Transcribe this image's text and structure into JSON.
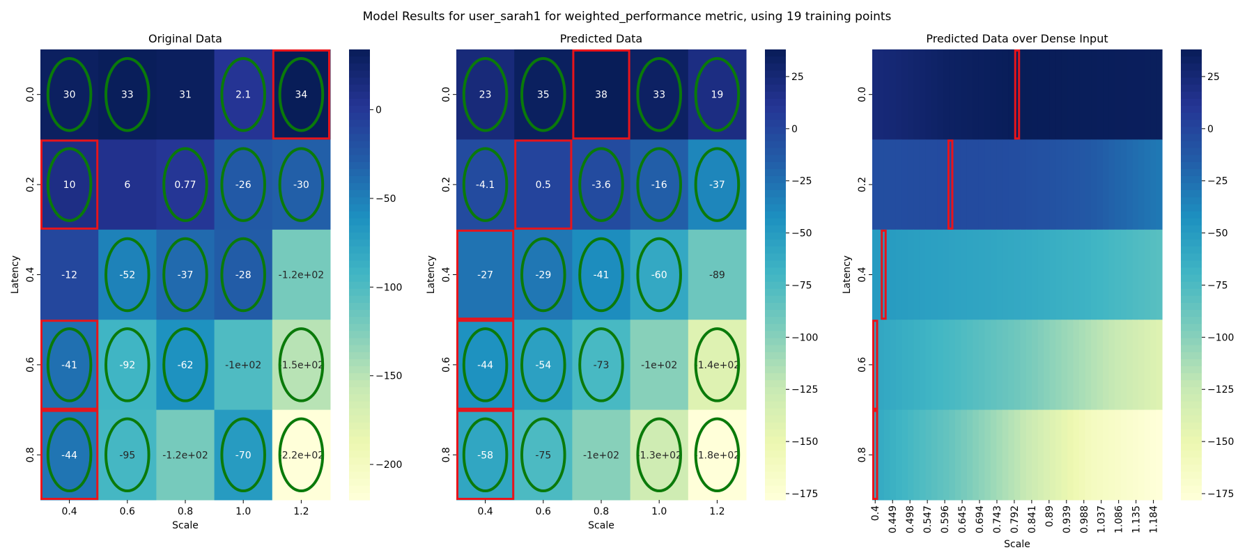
{
  "figure": {
    "title": "Model Results for user_sarah1 for weighted_performance metric, using 19 training points"
  },
  "colormap": {
    "name": "YlGnBu",
    "stops": [
      "#ffffd9",
      "#edf8b1",
      "#c7e9b4",
      "#7fcdbb",
      "#41b6c4",
      "#1d91c0",
      "#225ea8",
      "#253494",
      "#081d58"
    ]
  },
  "marker_colors": {
    "ellipse": "#0a7a0a",
    "rect": "#e8141b"
  },
  "chart_data": [
    {
      "type": "heatmap",
      "title": "Original Data",
      "xlabel": "Scale",
      "ylabel": "Latency",
      "x_ticks": [
        "0.4",
        "0.6",
        "0.8",
        "1.0",
        "1.2"
      ],
      "y_ticks": [
        "0.0",
        "0.2",
        "0.4",
        "0.6",
        "0.8"
      ],
      "values": [
        [
          30,
          33,
          31,
          2.1,
          34
        ],
        [
          10,
          6,
          0.77,
          -26,
          -30
        ],
        [
          -12,
          -52,
          -37,
          -28,
          -120
        ],
        [
          -41,
          -92,
          -62,
          -100,
          -150
        ],
        [
          -44,
          -95,
          -120,
          -70,
          -220
        ]
      ],
      "labels": [
        [
          "30",
          "33",
          "31",
          "2.1",
          "34"
        ],
        [
          "10",
          "6",
          "0.77",
          "-26",
          "-30"
        ],
        [
          "-12",
          "-52",
          "-37",
          "-28",
          "-1.2e+02"
        ],
        [
          "-41",
          "-92",
          "-62",
          "-1e+02",
          "-1.5e+02"
        ],
        [
          "-44",
          "-95",
          "-1.2e+02",
          "-70",
          "-2.2e+02"
        ]
      ],
      "vmin": -220,
      "vmax": 34,
      "colorbar_ticks": [
        0,
        -50,
        -100,
        -150,
        -200
      ],
      "colorbar_labels": [
        "0",
        "−50",
        "−100",
        "−150",
        "−200"
      ],
      "ellipses": [
        [
          0,
          0
        ],
        [
          0,
          1
        ],
        [
          0,
          3
        ],
        [
          0,
          4
        ],
        [
          1,
          0
        ],
        [
          1,
          2
        ],
        [
          1,
          3
        ],
        [
          1,
          4
        ],
        [
          2,
          1
        ],
        [
          2,
          2
        ],
        [
          2,
          3
        ],
        [
          3,
          0
        ],
        [
          3,
          1
        ],
        [
          3,
          2
        ],
        [
          3,
          4
        ],
        [
          4,
          0
        ],
        [
          4,
          1
        ],
        [
          4,
          3
        ],
        [
          4,
          4
        ]
      ],
      "highlight_rects": [
        [
          0,
          4
        ],
        [
          1,
          0
        ],
        [
          3,
          0
        ],
        [
          4,
          0
        ]
      ]
    },
    {
      "type": "heatmap",
      "title": "Predicted Data",
      "xlabel": "Scale",
      "ylabel": "Latency",
      "x_ticks": [
        "0.4",
        "0.6",
        "0.8",
        "1.0",
        "1.2"
      ],
      "y_ticks": [
        "0.0",
        "0.2",
        "0.4",
        "0.6",
        "0.8"
      ],
      "values": [
        [
          23,
          35,
          38,
          33,
          19
        ],
        [
          -4.1,
          0.5,
          -3.6,
          -16,
          -37
        ],
        [
          -27,
          -29,
          -41,
          -60,
          -89
        ],
        [
          -44,
          -54,
          -73,
          -100,
          -140
        ],
        [
          -58,
          -75,
          -100,
          -130,
          -180
        ]
      ],
      "labels": [
        [
          "23",
          "35",
          "38",
          "33",
          "19"
        ],
        [
          "-4.1",
          "0.5",
          "-3.6",
          "-16",
          "-37"
        ],
        [
          "-27",
          "-29",
          "-41",
          "-60",
          "-89"
        ],
        [
          "-44",
          "-54",
          "-73",
          "-1e+02",
          "-1.4e+02"
        ],
        [
          "-58",
          "-75",
          "-1e+02",
          "-1.3e+02",
          "-1.8e+02"
        ]
      ],
      "vmin": -178,
      "vmax": 38,
      "colorbar_ticks": [
        25,
        0,
        -25,
        -50,
        -75,
        -100,
        -125,
        -150,
        -175
      ],
      "colorbar_labels": [
        "25",
        "0",
        "−25",
        "−50",
        "−75",
        "−100",
        "−125",
        "−150",
        "−175"
      ],
      "ellipses": [
        [
          0,
          0
        ],
        [
          0,
          1
        ],
        [
          0,
          3
        ],
        [
          0,
          4
        ],
        [
          1,
          0
        ],
        [
          1,
          2
        ],
        [
          1,
          3
        ],
        [
          1,
          4
        ],
        [
          2,
          1
        ],
        [
          2,
          2
        ],
        [
          2,
          3
        ],
        [
          3,
          0
        ],
        [
          3,
          1
        ],
        [
          3,
          2
        ],
        [
          3,
          4
        ],
        [
          4,
          0
        ],
        [
          4,
          1
        ],
        [
          4,
          3
        ],
        [
          4,
          4
        ]
      ],
      "highlight_rects": [
        [
          0,
          2
        ],
        [
          1,
          1
        ],
        [
          2,
          0
        ],
        [
          3,
          0
        ],
        [
          4,
          0
        ]
      ]
    },
    {
      "type": "heatmap",
      "title": "Predicted Data over Dense Input",
      "xlabel": "Scale",
      "ylabel": "Latency",
      "x_ticks": [
        "0.4",
        "0.449",
        "0.498",
        "0.547",
        "0.596",
        "0.645",
        "0.694",
        "0.743",
        "0.792",
        "0.841",
        "0.89",
        "0.939",
        "0.988",
        "1.037",
        "1.086",
        "1.135",
        "1.184"
      ],
      "y_ticks": [
        "0.0",
        "0.2",
        "0.4",
        "0.6",
        "0.8"
      ],
      "x_range": [
        0.4,
        1.2
      ],
      "x_columns": 49,
      "row_profiles": [
        {
          "x": [
            0.4,
            0.6,
            0.8,
            1.0,
            1.2
          ],
          "values": [
            23,
            33,
            38,
            37,
            36
          ]
        },
        {
          "x": [
            0.4,
            0.6,
            0.8,
            1.0,
            1.2
          ],
          "values": [
            -6,
            -3,
            -5,
            -12,
            -30
          ]
        },
        {
          "x": [
            0.4,
            0.6,
            0.8,
            1.0,
            1.2
          ],
          "values": [
            -50,
            -55,
            -60,
            -68,
            -80
          ]
        },
        {
          "x": [
            0.4,
            0.6,
            0.8,
            1.0,
            1.2
          ],
          "values": [
            -58,
            -72,
            -90,
            -115,
            -140
          ]
        },
        {
          "x": [
            0.4,
            0.6,
            0.8,
            1.0,
            1.2
          ],
          "values": [
            -60,
            -85,
            -120,
            -160,
            -178
          ]
        }
      ],
      "vmin": -178,
      "vmax": 38,
      "colorbar_ticks": [
        25,
        0,
        -25,
        -50,
        -75,
        -100,
        -125,
        -150,
        -175
      ],
      "colorbar_labels": [
        "25",
        "0",
        "−25",
        "−50",
        "−75",
        "−100",
        "−125",
        "−150",
        "−175"
      ],
      "highlight_rects": [
        {
          "row": 0,
          "x": 0.8
        },
        {
          "row": 1,
          "x": 0.612
        },
        {
          "row": 2,
          "x": 0.424
        },
        {
          "row": 3,
          "x": 0.4
        },
        {
          "row": 4,
          "x": 0.4
        }
      ]
    }
  ]
}
